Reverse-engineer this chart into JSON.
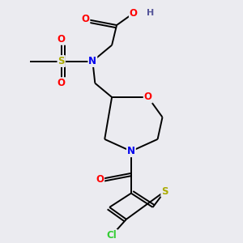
{
  "bg_color": "#ebebf0",
  "atom_colors": {
    "C": "#000000",
    "N": "#0000ee",
    "O": "#ff0000",
    "S_sulfonyl": "#aaaa00",
    "S_thio": "#aaaa00",
    "Cl": "#33cc33",
    "H": "#555599"
  },
  "bond_color": "#000000",
  "font_size_atom": 8.5
}
